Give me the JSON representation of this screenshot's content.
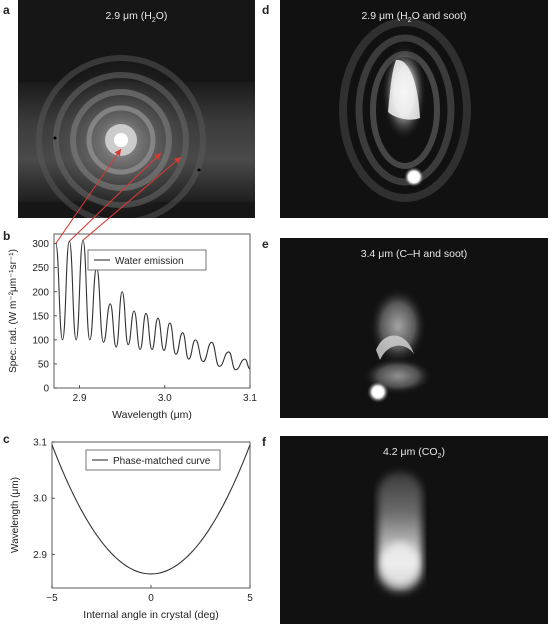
{
  "panels": {
    "a": {
      "letter": "a",
      "label": "2.9 μm (H",
      "sub": "2",
      "label_end": "O)"
    },
    "d": {
      "letter": "d",
      "label": "2.9 μm (H",
      "sub": "2",
      "label_end": "O and soot)"
    },
    "e": {
      "letter": "e",
      "label": "3.4 μm (C–H and soot)"
    },
    "f": {
      "letter": "f",
      "label": "4.2 μm (CO",
      "sub": "2",
      "label_end": ")"
    }
  },
  "colors": {
    "arrow": "#d63a32",
    "curve": "#333333",
    "image_bg": "#141414"
  },
  "chart_data": [
    {
      "panel": "b",
      "type": "line",
      "ylabel": "Spec. rad. (W m⁻²μm⁻¹sr⁻¹)",
      "xlabel": "Wavelength (μm)",
      "xlim": [
        2.87,
        3.1
      ],
      "ylim": [
        0,
        320
      ],
      "xticks": [
        "2.9",
        "3.0",
        "3.1"
      ],
      "yticks": [
        "0",
        "50",
        "100",
        "150",
        "200",
        "250",
        "300"
      ],
      "legend": [
        "Water emission"
      ],
      "series": [
        {
          "name": "Water emission",
          "peaks": [
            {
              "x": 2.872,
              "y": 300
            },
            {
              "x": 2.888,
              "y": 305
            },
            {
              "x": 2.904,
              "y": 307
            },
            {
              "x": 2.92,
              "y": 250
            },
            {
              "x": 2.936,
              "y": 175
            },
            {
              "x": 2.95,
              "y": 200
            },
            {
              "x": 2.964,
              "y": 160
            },
            {
              "x": 2.978,
              "y": 155
            },
            {
              "x": 2.992,
              "y": 145
            },
            {
              "x": 3.006,
              "y": 135
            },
            {
              "x": 3.021,
              "y": 115
            },
            {
              "x": 3.036,
              "y": 100
            },
            {
              "x": 3.055,
              "y": 95
            },
            {
              "x": 3.075,
              "y": 75
            },
            {
              "x": 3.094,
              "y": 60
            }
          ],
          "troughs": [
            {
              "x": 2.88,
              "y": 100
            },
            {
              "x": 2.896,
              "y": 100
            },
            {
              "x": 2.912,
              "y": 100
            },
            {
              "x": 2.928,
              "y": 95
            },
            {
              "x": 2.943,
              "y": 85
            },
            {
              "x": 2.957,
              "y": 90
            },
            {
              "x": 2.971,
              "y": 80
            },
            {
              "x": 2.985,
              "y": 80
            },
            {
              "x": 2.999,
              "y": 78
            },
            {
              "x": 3.013,
              "y": 70
            },
            {
              "x": 3.028,
              "y": 60
            },
            {
              "x": 3.045,
              "y": 55
            },
            {
              "x": 3.064,
              "y": 45
            },
            {
              "x": 3.083,
              "y": 38
            },
            {
              "x": 3.1,
              "y": 40
            }
          ]
        }
      ]
    },
    {
      "panel": "c",
      "type": "line",
      "ylabel": "Wavelength (μm)",
      "xlabel": "Internal angle in crystal (deg)",
      "xlim": [
        -5,
        5
      ],
      "ylim": [
        2.84,
        3.1
      ],
      "xticks": [
        "−5",
        "0",
        "5"
      ],
      "yticks": [
        "2.9",
        "3.0",
        "3.1"
      ],
      "legend": [
        "Phase-matched curve"
      ],
      "series": [
        {
          "name": "Phase-matched curve",
          "vertex": {
            "x": 0,
            "y": 2.865
          },
          "end_y": 3.095
        }
      ]
    }
  ]
}
